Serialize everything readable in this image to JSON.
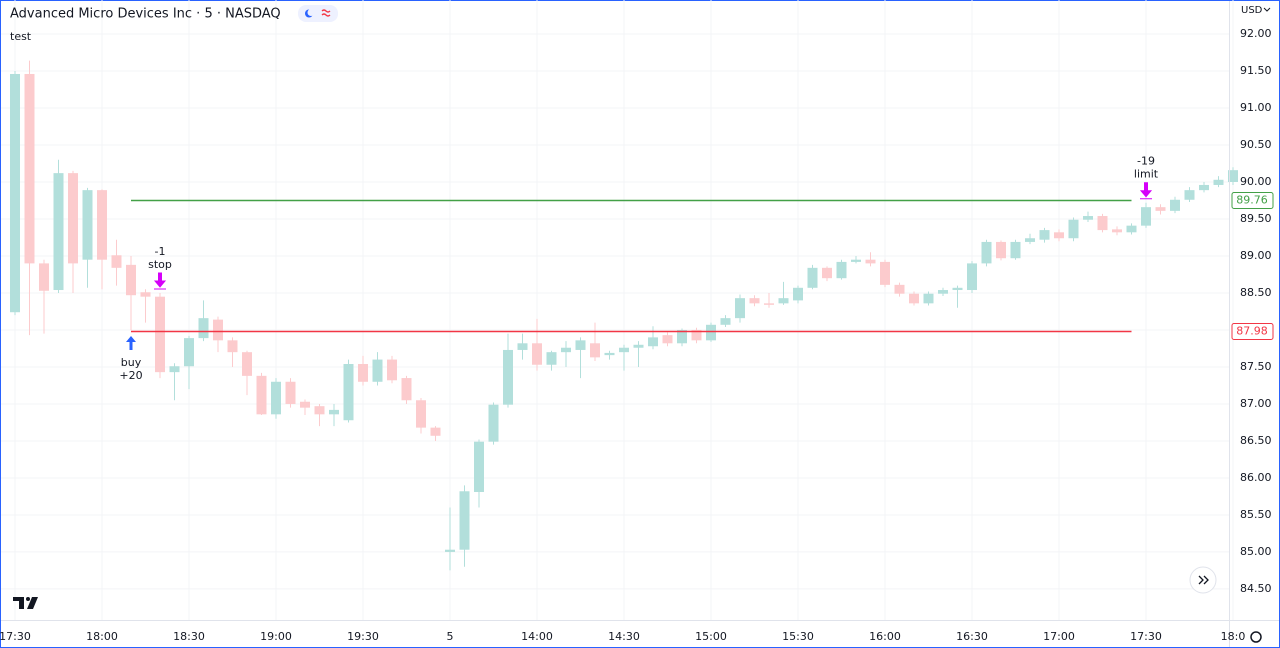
{
  "header": {
    "title": "Advanced Micro Devices Inc · 5 · NASDAQ",
    "indicator": "test",
    "currency": "USD"
  },
  "chart_data": {
    "type": "candlestick",
    "categories": [
      "17:30",
      null,
      null,
      null,
      null,
      null,
      "18:00",
      null,
      null,
      null,
      null,
      null,
      "18:30",
      null,
      null,
      null,
      null,
      null,
      "19:00",
      null,
      null,
      null,
      null,
      null,
      "19:30",
      null,
      null,
      null,
      null,
      null,
      "5",
      null,
      null,
      null,
      null,
      null,
      "14:00",
      null,
      null,
      null,
      null,
      null,
      "14:30",
      null,
      null,
      null,
      null,
      null,
      "15:00",
      null,
      null,
      null,
      null,
      null,
      "15:30",
      null,
      null,
      null,
      null,
      null,
      "16:00",
      null,
      null,
      null,
      null,
      null,
      "16:30",
      null,
      null,
      null,
      null,
      null,
      "17:00",
      null,
      null,
      null,
      null,
      null,
      "17:30",
      null,
      null,
      null,
      null,
      null,
      "18:0"
    ],
    "open": [
      88.24,
      91.46,
      88.9,
      88.54,
      90.12,
      88.95,
      89.89,
      89.01,
      88.88,
      88.51,
      88.45,
      87.43,
      87.51,
      87.89,
      88.14,
      87.86,
      87.7,
      87.38,
      86.86,
      87.3,
      87.03,
      86.97,
      86.86,
      86.78,
      87.54,
      87.3,
      87.6,
      87.35,
      87.05,
      86.68,
      85.0,
      85.03,
      85.81,
      86.49,
      86.99,
      87.73,
      87.82,
      87.53,
      87.7,
      87.73,
      87.82,
      87.66,
      87.7,
      87.76,
      87.78,
      87.93,
      87.82,
      88.0,
      87.86,
      88.07,
      88.16,
      88.43,
      88.36,
      88.36,
      88.4,
      88.57,
      88.84,
      88.7,
      88.92,
      88.95,
      88.92,
      88.61,
      88.49,
      88.36,
      88.49,
      88.54,
      88.54,
      88.9,
      89.19,
      88.97,
      89.19,
      89.22,
      89.32,
      89.24,
      89.49,
      89.54,
      89.36,
      89.32,
      89.41,
      89.66,
      89.61,
      89.76,
      89.89,
      89.96,
      90.0
    ],
    "high": [
      91.5,
      91.64,
      88.95,
      90.3,
      90.15,
      89.92,
      89.9,
      89.22,
      89.0,
      88.55,
      88.5,
      87.55,
      87.92,
      88.4,
      88.18,
      87.9,
      87.72,
      87.42,
      87.35,
      87.35,
      87.06,
      87.0,
      87.0,
      87.6,
      87.65,
      87.7,
      87.65,
      87.38,
      87.08,
      86.7,
      85.6,
      85.9,
      86.52,
      87.02,
      87.95,
      87.95,
      88.15,
      87.72,
      87.85,
      87.9,
      88.1,
      87.72,
      87.8,
      87.85,
      88.05,
      87.97,
      88.02,
      88.03,
      88.1,
      88.2,
      88.48,
      88.47,
      88.5,
      88.65,
      88.6,
      88.88,
      88.86,
      88.95,
      89.0,
      89.05,
      88.95,
      88.64,
      88.52,
      88.52,
      88.57,
      88.6,
      88.93,
      89.22,
      89.21,
      89.22,
      89.3,
      89.38,
      89.36,
      89.52,
      89.6,
      89.57,
      89.4,
      89.44,
      89.72,
      89.7,
      89.8,
      89.93,
      90.0,
      90.08,
      90.2
    ],
    "low": [
      88.2,
      87.93,
      87.95,
      88.5,
      88.5,
      88.57,
      88.55,
      88.6,
      88.0,
      88.1,
      87.35,
      87.05,
      87.2,
      87.85,
      87.7,
      87.5,
      87.12,
      86.85,
      86.8,
      86.95,
      86.85,
      86.7,
      86.7,
      86.75,
      87.25,
      87.25,
      87.28,
      87.0,
      86.6,
      86.5,
      84.75,
      84.8,
      85.6,
      86.45,
      86.95,
      87.6,
      87.45,
      87.45,
      87.5,
      87.35,
      87.58,
      87.6,
      87.45,
      87.5,
      87.74,
      87.78,
      87.78,
      87.82,
      87.84,
      88.04,
      88.1,
      88.32,
      88.3,
      88.34,
      88.36,
      88.55,
      88.66,
      88.68,
      88.9,
      88.86,
      88.58,
      88.45,
      88.33,
      88.33,
      88.46,
      88.3,
      88.5,
      88.86,
      88.94,
      88.95,
      89.16,
      89.18,
      89.2,
      89.2,
      89.46,
      89.32,
      89.28,
      89.29,
      89.38,
      89.56,
      89.58,
      89.73,
      89.86,
      89.93,
      89.96
    ],
    "close": [
      91.46,
      88.9,
      88.53,
      90.12,
      88.9,
      89.89,
      88.95,
      88.84,
      88.47,
      88.45,
      87.43,
      87.51,
      87.89,
      88.16,
      87.86,
      87.7,
      87.38,
      86.86,
      87.3,
      87.0,
      86.95,
      86.86,
      86.92,
      87.54,
      87.3,
      87.6,
      87.32,
      87.05,
      86.68,
      86.57,
      85.03,
      85.82,
      86.49,
      86.99,
      87.73,
      87.82,
      87.53,
      87.7,
      87.76,
      87.86,
      87.63,
      87.69,
      87.76,
      87.8,
      87.9,
      87.82,
      88.0,
      87.86,
      88.07,
      88.16,
      88.43,
      88.36,
      88.34,
      88.43,
      88.57,
      88.84,
      88.7,
      88.92,
      88.95,
      88.9,
      88.61,
      88.49,
      88.36,
      88.49,
      88.54,
      88.57,
      88.9,
      89.19,
      88.97,
      89.19,
      89.24,
      89.35,
      89.24,
      89.49,
      89.54,
      89.35,
      89.32,
      89.41,
      89.66,
      89.61,
      89.76,
      89.89,
      89.96,
      90.03,
      90.16
    ],
    "up_color": "#b2dfdb",
    "down_color": "#fccbcd",
    "ylim": [
      84.08,
      92.46
    ],
    "yticks": [
      {
        "value": 92,
        "label": "92.00"
      },
      {
        "value": 91.5,
        "label": "91.50"
      },
      {
        "value": 91,
        "label": "91.00"
      },
      {
        "value": 90.5,
        "label": "90.50"
      },
      {
        "value": 90,
        "label": "90.00"
      },
      {
        "value": 89.5,
        "label": "89.50"
      },
      {
        "value": 89,
        "label": "89.00"
      },
      {
        "value": 88.5,
        "label": "88.50"
      },
      {
        "value": 88,
        "label": "88.00"
      },
      {
        "value": 87.5,
        "label": "87.50"
      },
      {
        "value": 87,
        "label": "87.00"
      },
      {
        "value": 86.5,
        "label": "86.50"
      },
      {
        "value": 86,
        "label": "86.00"
      },
      {
        "value": 85.5,
        "label": "85.50"
      },
      {
        "value": 85,
        "label": "85.00"
      },
      {
        "value": 84.5,
        "label": "84.50"
      }
    ],
    "grid": true,
    "levels": [
      {
        "value": 89.76,
        "color": "#43a047",
        "start": 8,
        "end": 77
      },
      {
        "value": 87.98,
        "color": "#f23645",
        "start": 8,
        "end": 77
      }
    ],
    "annotations": [
      {
        "index": 8,
        "lines": [
          "buy",
          "+20"
        ],
        "position": "below",
        "color": "#2962ff"
      },
      {
        "index": 10,
        "lines": [
          "-1",
          "stop"
        ],
        "position": "above",
        "color": "#d500f9"
      },
      {
        "index": 78,
        "lines": [
          "-19",
          "limit"
        ],
        "position": "above",
        "color": "#d500f9"
      }
    ]
  }
}
